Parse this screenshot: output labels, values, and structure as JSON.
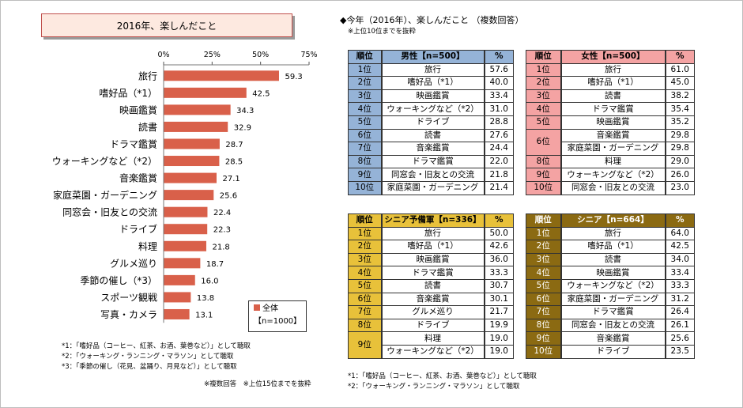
{
  "left_title": "2016年、楽しんだこと",
  "chart_data": {
    "type": "bar",
    "orientation": "horizontal",
    "categories": [
      "旅行",
      "嗜好品（*1）",
      "映画鑑賞",
      "読書",
      "ドラマ鑑賞",
      "ウォーキングなど（*2）",
      "音楽鑑賞",
      "家庭菜園・ガーデニング",
      "同窓会・旧友との交流",
      "ドライブ",
      "料理",
      "グルメ巡り",
      "季節の催し（*3）",
      "スポーツ観戦",
      "写真・カメラ"
    ],
    "values": [
      59.3,
      42.5,
      34.3,
      32.9,
      28.7,
      28.5,
      27.1,
      25.6,
      22.4,
      22.3,
      21.8,
      18.7,
      16.0,
      13.8,
      13.1
    ],
    "value_labels": [
      "59.3",
      "42.5",
      "34.3",
      "32.9",
      "28.7",
      "28.5",
      "27.1",
      "25.6",
      "22.4",
      "22.3",
      "21.8",
      "18.7",
      "16.0",
      "13.8",
      "13.1"
    ],
    "ticks": [
      "0%",
      "25%",
      "50%",
      "75%"
    ],
    "xlim": [
      0,
      75
    ],
    "bar_color": "#d9604a",
    "legend_label": "全体",
    "legend_n": "【n=1000】"
  },
  "left_notes": [
    "*1：「嗜好品（コーヒー、紅茶、お酒、葉巻など）」として聴取",
    "*2：「ウォーキング・ランニング・マラソン」として聴取",
    "*3：「季節の催し（花見、盆踊り、月見など）」として聴取"
  ],
  "left_footer": "※複数回答　※上位15位までを抜粋",
  "right_title": "◆今年（2016年）、楽しんだこと （複数回答）",
  "right_subtitle": "※上位10位までを抜粋",
  "tables": {
    "male": {
      "h_rank": "順位",
      "h_item": "男性【n=500】",
      "h_pct": "%",
      "color": "#95b3d7",
      "rows": [
        {
          "rank": "1位",
          "item": "旅行",
          "pct": "57.6"
        },
        {
          "rank": "2位",
          "item": "嗜好品（*1）",
          "pct": "40.0"
        },
        {
          "rank": "3位",
          "item": "映画鑑賞",
          "pct": "33.4"
        },
        {
          "rank": "4位",
          "item": "ウォーキングなど（*2）",
          "pct": "31.0"
        },
        {
          "rank": "5位",
          "item": "ドライブ",
          "pct": "28.8"
        },
        {
          "rank": "6位",
          "item": "読書",
          "pct": "27.6"
        },
        {
          "rank": "7位",
          "item": "音楽鑑賞",
          "pct": "24.4"
        },
        {
          "rank": "8位",
          "item": "ドラマ鑑賞",
          "pct": "22.0"
        },
        {
          "rank": "9位",
          "item": "同窓会・旧友との交流",
          "pct": "21.8"
        },
        {
          "rank": "10位",
          "item": "家庭菜園・ガーデニング",
          "pct": "21.4"
        }
      ]
    },
    "female": {
      "h_rank": "順位",
      "h_item": "女性【n=500】",
      "h_pct": "%",
      "color": "#f4a3a3",
      "rows": [
        {
          "rank": "1位",
          "item": "旅行",
          "pct": "61.0"
        },
        {
          "rank": "2位",
          "item": "嗜好品（*1）",
          "pct": "45.0"
        },
        {
          "rank": "3位",
          "item": "読書",
          "pct": "38.2"
        },
        {
          "rank": "4位",
          "item": "ドラマ鑑賞",
          "pct": "35.4"
        },
        {
          "rank": "5位",
          "item": "映画鑑賞",
          "pct": "35.2"
        },
        {
          "rank": "6位",
          "item": "音楽鑑賞",
          "pct": "29.8"
        },
        {
          "rank": "",
          "item": "家庭菜園・ガーデニング",
          "pct": "29.8"
        },
        {
          "rank": "8位",
          "item": "料理",
          "pct": "29.0"
        },
        {
          "rank": "9位",
          "item": "ウォーキングなど（*2）",
          "pct": "26.0"
        },
        {
          "rank": "10位",
          "item": "同窓会・旧友との交流",
          "pct": "23.0"
        }
      ]
    },
    "pre_senior": {
      "h_rank": "順位",
      "h_item": "シニア予備軍【n=336】",
      "h_pct": "%",
      "color": "#e8c13a",
      "rows": [
        {
          "rank": "1位",
          "item": "旅行",
          "pct": "50.0"
        },
        {
          "rank": "2位",
          "item": "嗜好品（*1）",
          "pct": "42.6"
        },
        {
          "rank": "3位",
          "item": "映画鑑賞",
          "pct": "36.0"
        },
        {
          "rank": "4位",
          "item": "ドラマ鑑賞",
          "pct": "33.3"
        },
        {
          "rank": "5位",
          "item": "読書",
          "pct": "30.7"
        },
        {
          "rank": "6位",
          "item": "音楽鑑賞",
          "pct": "30.1"
        },
        {
          "rank": "7位",
          "item": "グルメ巡り",
          "pct": "21.7"
        },
        {
          "rank": "8位",
          "item": "ドライブ",
          "pct": "19.9"
        },
        {
          "rank": "9位",
          "item": "料理",
          "pct": "19.0"
        },
        {
          "rank": "",
          "item": "ウォーキングなど（*2）",
          "pct": "19.0"
        }
      ]
    },
    "senior": {
      "h_rank": "順位",
      "h_item": "シニア【n=664】",
      "h_pct": "%",
      "color": "#8b6a12",
      "rows": [
        {
          "rank": "1位",
          "item": "旅行",
          "pct": "64.0"
        },
        {
          "rank": "2位",
          "item": "嗜好品（*1）",
          "pct": "42.5"
        },
        {
          "rank": "3位",
          "item": "読書",
          "pct": "34.0"
        },
        {
          "rank": "4位",
          "item": "映画鑑賞",
          "pct": "33.4"
        },
        {
          "rank": "5位",
          "item": "ウォーキングなど（*2）",
          "pct": "33.3"
        },
        {
          "rank": "6位",
          "item": "家庭菜園・ガーデニング",
          "pct": "31.2"
        },
        {
          "rank": "7位",
          "item": "ドラマ鑑賞",
          "pct": "26.4"
        },
        {
          "rank": "8位",
          "item": "同窓会・旧友との交流",
          "pct": "26.1"
        },
        {
          "rank": "9位",
          "item": "音楽鑑賞",
          "pct": "25.6"
        },
        {
          "rank": "10位",
          "item": "ドライブ",
          "pct": "23.5"
        }
      ]
    }
  },
  "right_notes": [
    "*1：「嗜好品（コーヒー、紅茶、お酒、葉巻など）」として聴取",
    "*2：「ウォーキング・ランニング・マラソン」として聴取"
  ]
}
